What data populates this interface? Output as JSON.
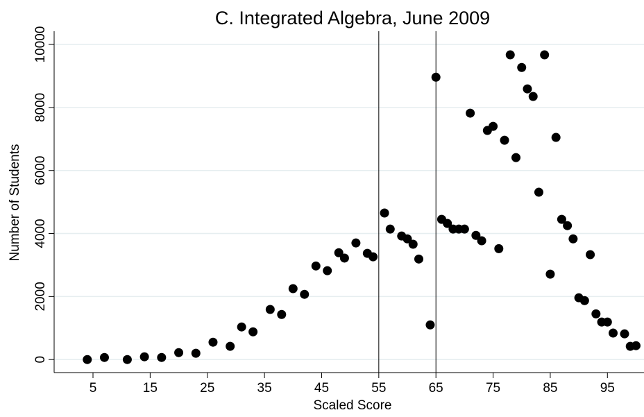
{
  "chart_data": {
    "type": "scatter",
    "title": "C. Integrated Algebra, June 2009",
    "x_label": "Scaled Score",
    "y_label": "Number of Students",
    "color": "#000000",
    "grid": true,
    "reference_lines": [
      55,
      65
    ],
    "x": [
      4,
      7,
      11,
      14,
      17,
      20,
      23,
      26,
      29,
      31,
      33,
      36,
      38,
      40,
      42,
      44,
      46,
      48,
      49,
      51,
      53,
      54,
      56,
      57,
      59,
      60,
      61,
      62,
      64,
      65,
      66,
      67,
      68,
      69,
      70,
      71,
      72,
      73,
      74,
      75,
      76,
      77,
      78,
      79,
      80,
      81,
      82,
      83,
      84,
      85,
      86,
      87,
      88,
      89,
      90,
      91,
      92,
      93,
      94,
      95,
      96,
      98,
      99,
      100
    ],
    "values": [
      0,
      66,
      0,
      88,
      66,
      220,
      200,
      550,
      420,
      1035,
      880,
      1590,
      1430,
      2250,
      2070,
      2970,
      2820,
      3390,
      3220,
      3700,
      3370,
      3260,
      4650,
      4140,
      3920,
      3830,
      3660,
      3190,
      1100,
      8960,
      4450,
      4320,
      4140,
      4140,
      4140,
      7820,
      3940,
      3770,
      7270,
      7400,
      3520,
      6960,
      9670,
      6410,
      9270,
      8590,
      8350,
      5310,
      9670,
      2710,
      7050,
      4450,
      4250,
      3830,
      1960,
      1870,
      3330,
      1450,
      1190,
      1190,
      840,
      815,
      420,
      440
    ],
    "xlim": [
      -1.8,
      101.4
    ],
    "ylim": [
      -260,
      10420
    ],
    "xticks": [
      5,
      15,
      25,
      35,
      45,
      55,
      65,
      75,
      85,
      95
    ],
    "yticks": [
      0,
      2000,
      4000,
      6000,
      8000,
      10000
    ]
  }
}
